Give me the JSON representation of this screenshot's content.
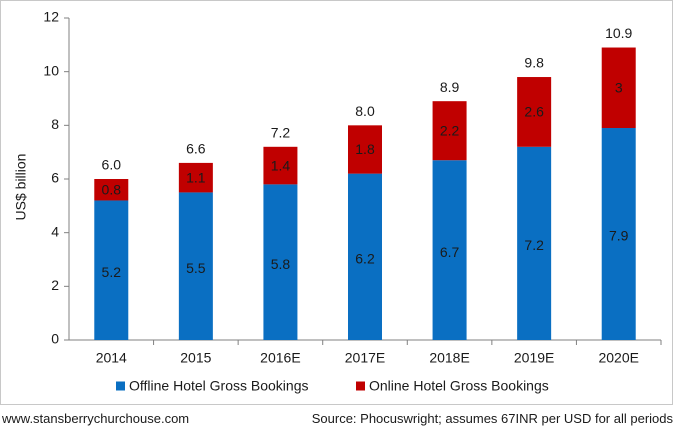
{
  "chart_data": {
    "type": "bar",
    "stacked": true,
    "categories": [
      "2014",
      "2015",
      "2016E",
      "2017E",
      "2018E",
      "2019E",
      "2020E"
    ],
    "series": [
      {
        "name": "Offline Hotel Gross Bookings",
        "values": [
          5.2,
          5.5,
          5.8,
          6.2,
          6.7,
          7.2,
          7.9
        ],
        "labels": [
          "5.2",
          "5.5",
          "5.8",
          "6.2",
          "6.7",
          "7.2",
          "7.9"
        ],
        "color": "#0a6fc2"
      },
      {
        "name": "Online Hotel Gross Bookings",
        "values": [
          0.8,
          1.1,
          1.4,
          1.8,
          2.2,
          2.6,
          3.0
        ],
        "labels": [
          "0.8",
          "1.1",
          "1.4",
          "1.8",
          "2.2",
          "2.6",
          "3"
        ],
        "color": "#c00000"
      }
    ],
    "totals": [
      "6.0",
      "6.6",
      "7.2",
      "8.0",
      "8.9",
      "9.8",
      "10.9"
    ],
    "ylabel": "US$ billion",
    "ylim": [
      0,
      12
    ],
    "yticks": [
      "0",
      "2",
      "4",
      "6",
      "8",
      "10",
      "12"
    ],
    "ytick_values": [
      0,
      2,
      4,
      6,
      8,
      10,
      12
    ],
    "grid": false,
    "legend_position": "bottom"
  },
  "footer": {
    "left": "www.stansberrychurchouse.com",
    "right": "Source: Phocuswright; assumes 67INR per USD for all periods"
  }
}
